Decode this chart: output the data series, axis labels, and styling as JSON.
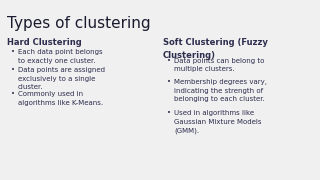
{
  "title": "Types of clustering",
  "title_fontsize": 11,
  "title_color": "#1a1a2e",
  "bg_color": "#f0f0f0",
  "text_color": "#2d2d4e",
  "left_header": "Hard Clustering",
  "left_bullets": [
    "Each data point belongs\nto exactly one cluster.",
    "Data points are assigned\nexclusively to a single\ncluster.",
    "Commonly used in\nalgorithms like K-Means."
  ],
  "right_header": "Soft Clustering (Fuzzy\nClustering)",
  "right_bullets": [
    "Data points can belong to\nmultiple clusters.",
    "Membership degrees vary,\nindicating the strength of\nbelonging to each cluster.",
    "Used in algorithms like\nGaussian Mixture Models\n(GMM)."
  ],
  "header_fontsize": 6.0,
  "bullet_fontsize": 5.0,
  "bullet_char": "•"
}
